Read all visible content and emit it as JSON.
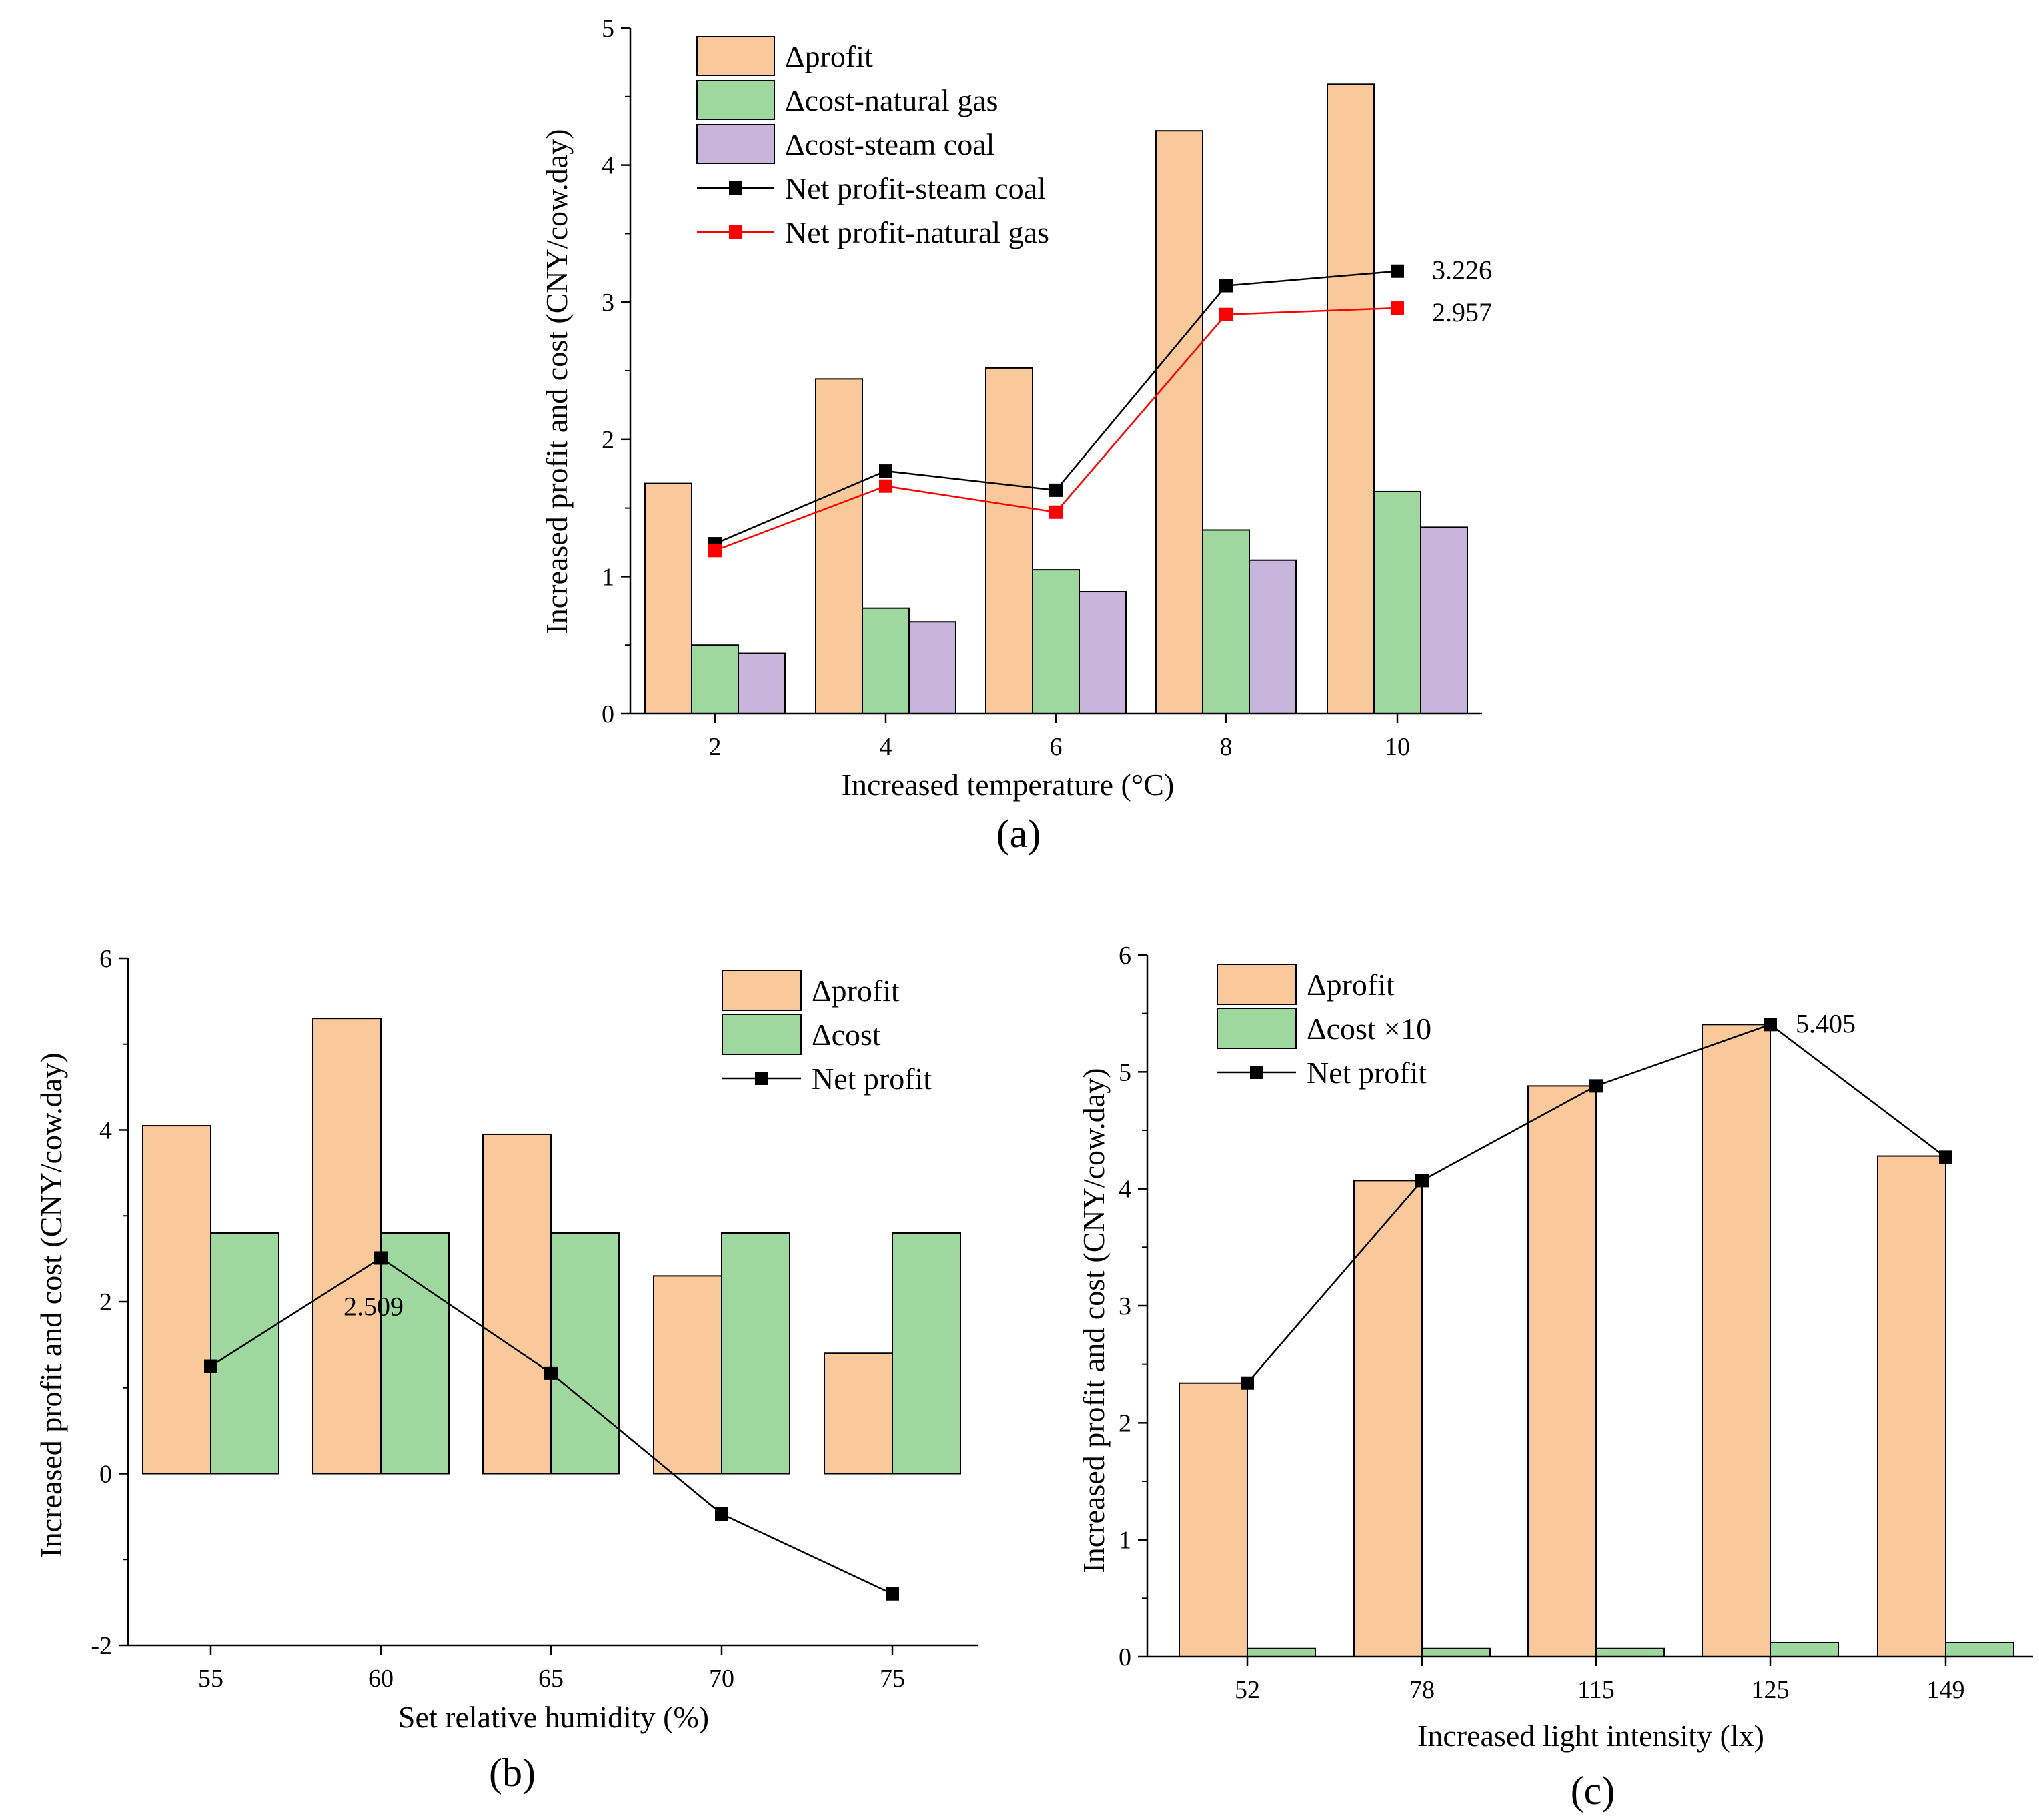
{
  "chart_data": [
    {
      "type": "bar",
      "panel_label": "(a)",
      "categories": [
        "2",
        "4",
        "6",
        "8",
        "10"
      ],
      "series": [
        {
          "name": "Δprofit",
          "kind": "bar",
          "values": [
            1.68,
            2.44,
            2.52,
            4.25,
            4.59
          ]
        },
        {
          "name": "Δcost-natural gas",
          "kind": "bar",
          "values": [
            0.5,
            0.77,
            1.05,
            1.34,
            1.62
          ]
        },
        {
          "name": "Δcost-steam coal",
          "kind": "bar",
          "values": [
            0.44,
            0.67,
            0.89,
            1.12,
            1.36
          ]
        },
        {
          "name": "Net profit-steam coal",
          "kind": "line",
          "values": [
            1.24,
            1.77,
            1.63,
            3.12,
            3.226
          ]
        },
        {
          "name": "Net profit-natural gas",
          "kind": "line",
          "values": [
            1.19,
            1.66,
            1.47,
            2.91,
            2.957
          ]
        }
      ],
      "xlabel": "Increased temperature (°C)",
      "ylabel": "Increased profit and cost (CNY/cow.day)",
      "ylim": [
        0,
        5
      ],
      "yticks": [
        "0",
        "1",
        "2",
        "3",
        "4",
        "5"
      ],
      "annotations": [
        "3.226",
        "2.957"
      ],
      "legend_position": "top-left"
    },
    {
      "type": "bar",
      "panel_label": "(b)",
      "categories": [
        "55",
        "60",
        "65",
        "70",
        "75"
      ],
      "series": [
        {
          "name": "Δprofit",
          "kind": "bar",
          "values": [
            4.05,
            5.3,
            3.95,
            2.3,
            1.4
          ]
        },
        {
          "name": "Δcost",
          "kind": "bar",
          "values": [
            2.8,
            2.8,
            2.8,
            2.8,
            2.8
          ]
        },
        {
          "name": "Net profit",
          "kind": "line",
          "values": [
            1.25,
            2.509,
            1.17,
            -0.47,
            -1.4
          ]
        }
      ],
      "xlabel": "Set relative humidity (%)",
      "ylabel": "Increased profit and cost (CNY/cow.day)",
      "ylim": [
        -2,
        6
      ],
      "yticks": [
        "-2",
        "0",
        "2",
        "4",
        "6"
      ],
      "annotations": [
        "2.509"
      ],
      "legend_position": "top-right"
    },
    {
      "type": "bar",
      "panel_label": "(c)",
      "categories": [
        "52",
        "78",
        "115",
        "125",
        "149"
      ],
      "series": [
        {
          "name": "Δprofit",
          "kind": "bar",
          "values": [
            2.34,
            4.07,
            4.88,
            5.405,
            4.28
          ]
        },
        {
          "name": "Δcost ×10",
          "kind": "bar",
          "values": [
            0.07,
            0.07,
            0.07,
            0.12,
            0.12
          ]
        },
        {
          "name": "Net profit",
          "kind": "line",
          "values": [
            2.34,
            4.07,
            4.88,
            5.405,
            4.27
          ]
        }
      ],
      "xlabel": "Increased light intensity (lx)",
      "ylabel": "Increased profit and cost (CNY/cow.day)",
      "ylim": [
        0,
        6
      ],
      "yticks": [
        "0",
        "1",
        "2",
        "3",
        "4",
        "5",
        "6"
      ],
      "annotations": [
        "5.405"
      ],
      "legend_position": "top-left"
    }
  ],
  "colors": {
    "profit": "#F9C89B",
    "cost_gas": "#9ED89E",
    "cost_coal": "#C7B5DC",
    "net_black": "#000000",
    "net_red": "#FF0000"
  }
}
